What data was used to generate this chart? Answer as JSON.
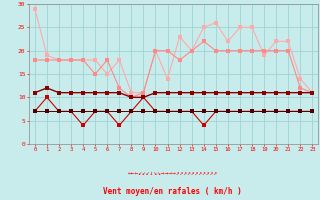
{
  "x": [
    0,
    1,
    2,
    3,
    4,
    5,
    6,
    7,
    8,
    9,
    10,
    11,
    12,
    13,
    14,
    15,
    16,
    17,
    18,
    19,
    20,
    21,
    22,
    23
  ],
  "line1": [
    29,
    19,
    18,
    18,
    18,
    18,
    15,
    18,
    11,
    11,
    20,
    14,
    23,
    20,
    25,
    26,
    22,
    25,
    25,
    19,
    22,
    22,
    14,
    11
  ],
  "line2": [
    18,
    18,
    18,
    18,
    18,
    15,
    18,
    12,
    10,
    11,
    20,
    20,
    18,
    20,
    22,
    20,
    20,
    20,
    20,
    20,
    20,
    20,
    12,
    11
  ],
  "line3": [
    11,
    12,
    11,
    11,
    11,
    11,
    11,
    11,
    10,
    10,
    11,
    11,
    11,
    11,
    11,
    11,
    11,
    11,
    11,
    11,
    11,
    11,
    11,
    11
  ],
  "line4": [
    7,
    10,
    7,
    7,
    4,
    7,
    7,
    4,
    7,
    10,
    7,
    7,
    7,
    7,
    4,
    7,
    7,
    7,
    7,
    7,
    7,
    7,
    7,
    7
  ],
  "line5": [
    7,
    7,
    7,
    7,
    7,
    7,
    7,
    7,
    7,
    7,
    7,
    7,
    7,
    7,
    7,
    7,
    7,
    7,
    7,
    7,
    7,
    7,
    7,
    7
  ],
  "bg_color": "#c8ecec",
  "grid_color": "#a0d4d4",
  "line1_color": "#ffaaaa",
  "line2_color": "#ff8888",
  "line3_color": "#880000",
  "line4_color": "#cc0000",
  "line5_color": "#550000",
  "xlabel": "Vent moyen/en rafales ( km/h )",
  "arrows": "←←←↙↙↙↓↘↘→→→→↗↗↗↗↗↗↗↗↗↗↗",
  "ylim": [
    0,
    30
  ],
  "xlim": [
    -0.5,
    23.5
  ],
  "yticks": [
    0,
    5,
    10,
    15,
    20,
    25,
    30
  ]
}
